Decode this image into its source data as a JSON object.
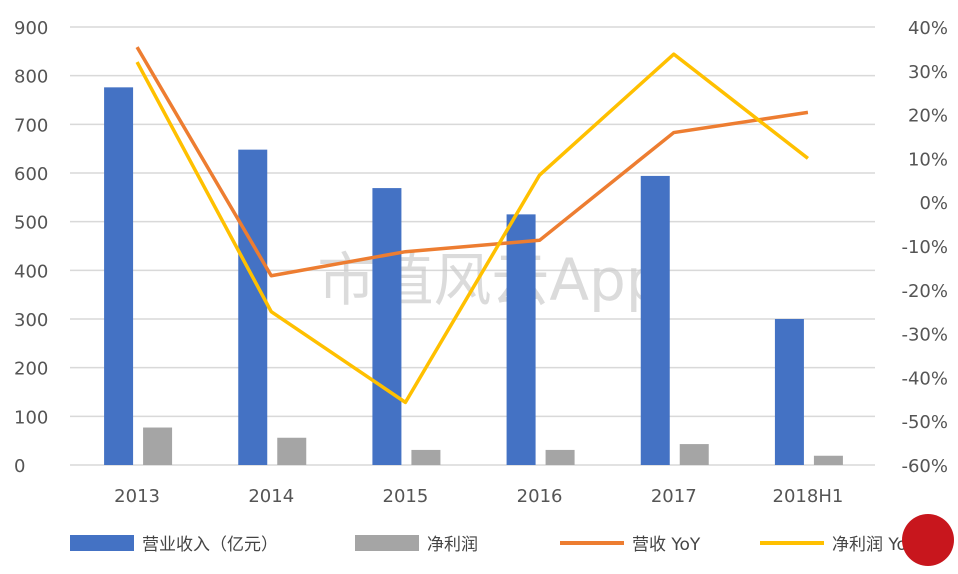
{
  "chart_data": {
    "type": "bar+line",
    "categories": [
      "2013",
      "2014",
      "2015",
      "2016",
      "2017",
      "2018H1"
    ],
    "left_axis": {
      "ylim": [
        0,
        900
      ],
      "ticks": [
        "0",
        "100",
        "200",
        "300",
        "400",
        "500",
        "600",
        "700",
        "800",
        "900"
      ]
    },
    "right_axis": {
      "ylim": [
        -60,
        40
      ],
      "ticks": [
        "-60%",
        "-50%",
        "-40%",
        "-30%",
        "-20%",
        "-10%",
        "0%",
        "10%",
        "20%",
        "30%",
        "40%"
      ]
    },
    "grid": true,
    "legend_position": "bottom",
    "series": [
      {
        "name": "营业收入（亿元）",
        "type": "bar",
        "axis": "left",
        "color": "#4472C4",
        "values": [
          776,
          648,
          569,
          515,
          594,
          300
        ]
      },
      {
        "name": "净利润",
        "type": "bar",
        "axis": "left",
        "color": "#A5A5A5",
        "values": [
          77,
          56,
          31,
          31,
          43,
          19
        ]
      },
      {
        "name": "营收 YoY",
        "type": "line",
        "axis": "right",
        "unit": "%",
        "color": "#ED7D31",
        "values": [
          35.4,
          -16.8,
          -11.3,
          -8.7,
          15.9,
          20.5
        ]
      },
      {
        "name": "净利润 YoY",
        "type": "line",
        "axis": "right",
        "unit": "%",
        "color": "#FFC000",
        "values": [
          32,
          -25,
          -45.7,
          6.2,
          33.8,
          10
        ]
      }
    ],
    "watermark": "市值风云App"
  }
}
